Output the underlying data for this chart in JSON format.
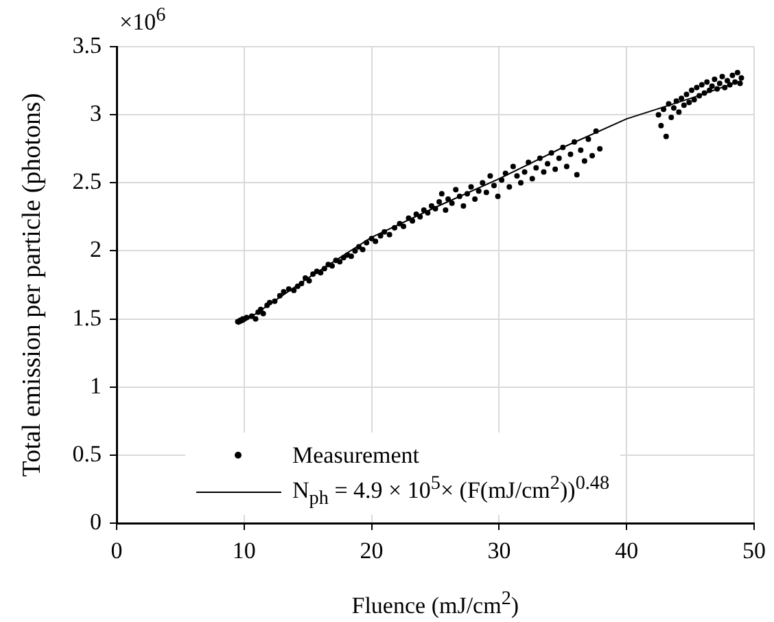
{
  "chart_data": {
    "type": "scatter",
    "xlabel": "Fluence (mJ/cm$^{2}$)",
    "ylabel": "Total emission per particle (photons)",
    "annotations": [
      "×10$^{6}$"
    ],
    "xlim": [
      0,
      50
    ],
    "xticks": [
      0,
      10,
      20,
      30,
      40,
      50
    ],
    "ylim": [
      0,
      3.5
    ],
    "yticks": [
      0,
      0.5,
      1,
      1.5,
      2,
      2.5,
      3,
      3.5
    ],
    "grid": true,
    "legend": "bottom",
    "series": [
      {
        "name": "Measurement",
        "marker": "circle",
        "color": "#000000",
        "x": [
          9.5,
          9.7,
          9.9,
          10.2,
          10.6,
          10.9,
          11.1,
          11.3,
          11.5,
          11.8,
          12.0,
          12.4,
          12.8,
          13.1,
          13.5,
          13.9,
          14.2,
          14.5,
          14.8,
          15.1,
          15.4,
          15.7,
          16.0,
          16.3,
          16.6,
          16.9,
          17.2,
          17.5,
          17.8,
          18.1,
          18.4,
          18.7,
          19.0,
          19.3,
          19.6,
          20.0,
          20.3,
          20.7,
          21.0,
          21.4,
          21.8,
          22.2,
          22.5,
          22.9,
          23.2,
          23.5,
          23.8,
          24.1,
          24.4,
          24.7,
          25.0,
          25.3,
          25.5,
          25.8,
          26.0,
          26.3,
          26.6,
          26.9,
          27.2,
          27.5,
          27.8,
          28.1,
          28.4,
          28.7,
          29.0,
          29.3,
          29.6,
          29.9,
          30.2,
          30.5,
          30.8,
          31.1,
          31.4,
          31.7,
          32.0,
          32.3,
          32.6,
          32.9,
          33.2,
          33.5,
          33.8,
          34.1,
          34.4,
          34.7,
          35.0,
          35.3,
          35.6,
          35.9,
          36.1,
          36.4,
          36.7,
          37.0,
          37.3,
          37.6,
          37.9,
          42.5,
          42.7,
          42.9,
          43.1,
          43.3,
          43.5,
          43.7,
          43.9,
          44.1,
          44.3,
          44.5,
          44.7,
          44.9,
          45.1,
          45.3,
          45.5,
          45.7,
          45.9,
          46.1,
          46.3,
          46.5,
          46.7,
          46.9,
          47.1,
          47.3,
          47.5,
          47.7,
          47.9,
          48.1,
          48.3,
          48.5,
          48.7,
          48.9,
          49.0
        ],
        "values": [
          1.48,
          1.49,
          1.5,
          1.51,
          1.52,
          1.5,
          1.55,
          1.57,
          1.54,
          1.6,
          1.62,
          1.63,
          1.67,
          1.7,
          1.72,
          1.71,
          1.74,
          1.76,
          1.8,
          1.78,
          1.83,
          1.85,
          1.84,
          1.87,
          1.9,
          1.89,
          1.93,
          1.92,
          1.95,
          1.97,
          1.96,
          2.0,
          2.03,
          2.01,
          2.06,
          2.09,
          2.07,
          2.11,
          2.14,
          2.12,
          2.17,
          2.2,
          2.18,
          2.24,
          2.22,
          2.27,
          2.25,
          2.3,
          2.28,
          2.33,
          2.31,
          2.36,
          2.42,
          2.3,
          2.38,
          2.35,
          2.45,
          2.4,
          2.33,
          2.42,
          2.47,
          2.38,
          2.44,
          2.5,
          2.43,
          2.55,
          2.48,
          2.4,
          2.52,
          2.57,
          2.47,
          2.62,
          2.55,
          2.5,
          2.58,
          2.65,
          2.53,
          2.61,
          2.68,
          2.58,
          2.64,
          2.72,
          2.6,
          2.68,
          2.76,
          2.62,
          2.71,
          2.8,
          2.56,
          2.74,
          2.66,
          2.82,
          2.7,
          2.88,
          2.75,
          3.0,
          2.92,
          3.04,
          2.84,
          3.08,
          2.98,
          3.05,
          3.1,
          3.02,
          3.12,
          3.07,
          3.15,
          3.09,
          3.18,
          3.11,
          3.2,
          3.14,
          3.22,
          3.16,
          3.24,
          3.18,
          3.21,
          3.26,
          3.19,
          3.23,
          3.28,
          3.2,
          3.25,
          3.22,
          3.29,
          3.24,
          3.31,
          3.23,
          3.27
        ]
      },
      {
        "name": "N$_{ph}$ = 4.9 × 10$^{5}$× (F(mJ/cm$^{2}$))$^{0.48}$",
        "type": "line",
        "color": "#000000",
        "x": [
          9.5,
          10,
          15,
          20,
          25,
          30,
          35,
          40,
          45,
          49
        ],
        "values": [
          1.46,
          1.48,
          1.8,
          2.1,
          2.32,
          2.53,
          2.76,
          2.97,
          3.12,
          3.25
        ]
      }
    ]
  }
}
